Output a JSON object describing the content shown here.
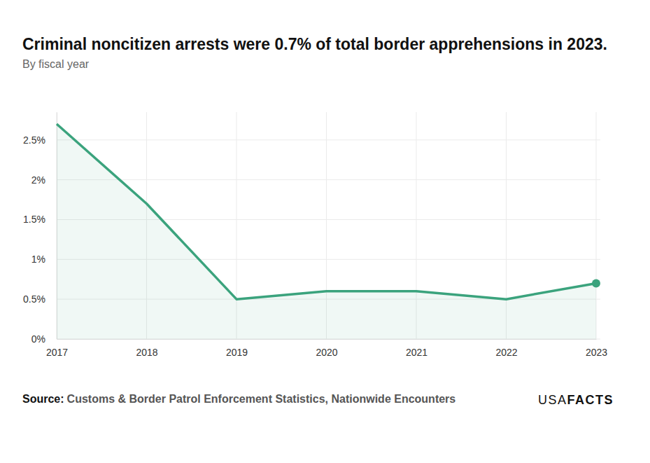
{
  "chart_data": {
    "type": "area",
    "title": "Criminal noncitizen arrests were 0.7% of total border apprehensions in 2023.",
    "subtitle": "By fiscal year",
    "x": [
      2017,
      2018,
      2019,
      2020,
      2021,
      2022,
      2023
    ],
    "values": [
      2.7,
      1.7,
      0.5,
      0.6,
      0.6,
      0.5,
      0.7
    ],
    "color": "#3ba37d",
    "marker": "last",
    "xlim": [
      2017,
      2023
    ],
    "xticks": [
      2017,
      2018,
      2019,
      2020,
      2021,
      2022,
      2023
    ],
    "ylim": [
      0,
      2.85
    ],
    "yticks": [
      {
        "value": 0,
        "label": "0%"
      },
      {
        "value": 0.5,
        "label": "0.5%"
      },
      {
        "value": 1,
        "label": "1%"
      },
      {
        "value": 1.5,
        "label": "1.5%"
      },
      {
        "value": 2,
        "label": "2%"
      },
      {
        "value": 2.5,
        "label": "2.5%"
      }
    ],
    "grid": true,
    "source_label": "Source:",
    "source": "Customs & Border Patrol Enforcement Statistics, Nationwide Encounters",
    "brand": "USA",
    "brand_bold": "FACTS"
  }
}
